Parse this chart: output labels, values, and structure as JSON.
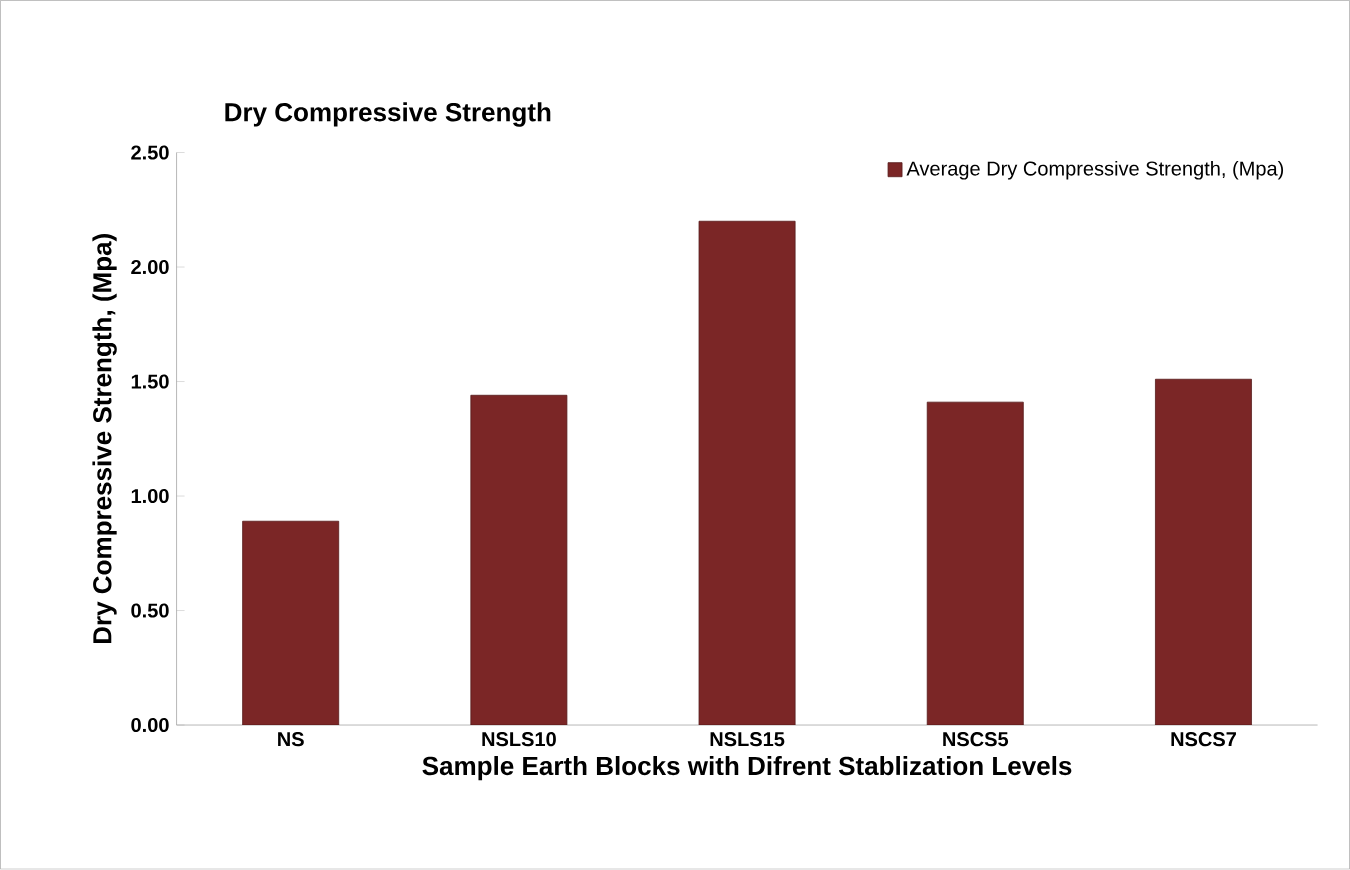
{
  "chart_data": {
    "type": "bar",
    "title": "Dry Compressive Strength",
    "xlabel": "Sample Earth Blocks with Difrent Stablization Levels",
    "ylabel": "Dry Compressive Strength, (Mpa)",
    "categories": [
      "NS",
      "NSLS10",
      "NSLS15",
      "NSCS5",
      "NSCS7"
    ],
    "series": [
      {
        "name": "Average Dry Compressive Strength, (Mpa)",
        "color": "#7b2626",
        "values": [
          0.89,
          1.44,
          2.2,
          1.41,
          1.51
        ]
      }
    ],
    "ylim": [
      0,
      2.5
    ],
    "yticks": [
      {
        "value": 0,
        "label": "0.00"
      },
      {
        "value": 0.5,
        "label": "0.50"
      },
      {
        "value": 1,
        "label": "1.00"
      },
      {
        "value": 1.5,
        "label": "1.50"
      },
      {
        "value": 2,
        "label": "2.00"
      },
      {
        "value": 2.5,
        "label": "2.50"
      }
    ],
    "grid": false,
    "legend": "top right"
  }
}
